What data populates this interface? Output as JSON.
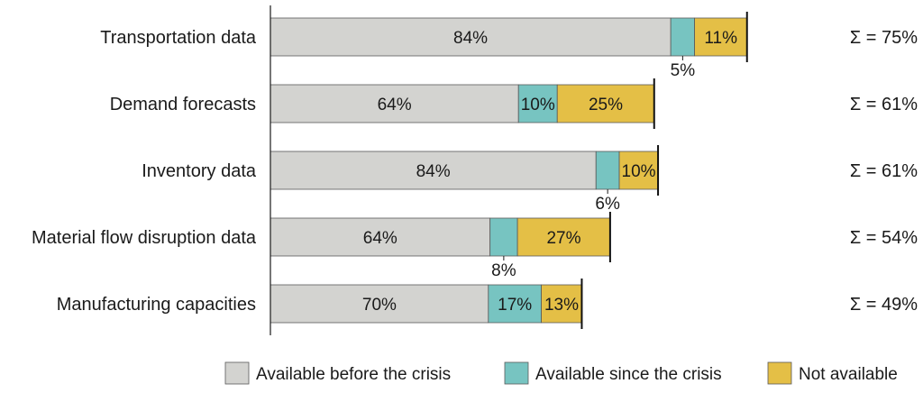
{
  "chart_data": {
    "type": "bar",
    "orientation": "horizontal",
    "stacked": true,
    "categories": [
      "Transportation data",
      "Demand forecasts",
      "Inventory data",
      "Material flow disruption data",
      "Manufacturing  capacities"
    ],
    "series": [
      {
        "name": "Available before the crisis",
        "color": "#d3d3d0",
        "values": [
          84,
          64,
          84,
          64,
          70
        ]
      },
      {
        "name": "Available since the crisis",
        "color": "#77c4c1",
        "values": [
          5,
          10,
          6,
          8,
          17
        ]
      },
      {
        "name": "Not available",
        "color": "#e4bf46",
        "values": [
          11,
          25,
          10,
          27,
          13
        ]
      }
    ],
    "sums": [
      "Σ = 75%",
      "Σ = 61%",
      "Σ = 61%",
      "Σ = 54%",
      "Σ = 49%"
    ],
    "legend_position": "bottom-right",
    "grid": false
  }
}
